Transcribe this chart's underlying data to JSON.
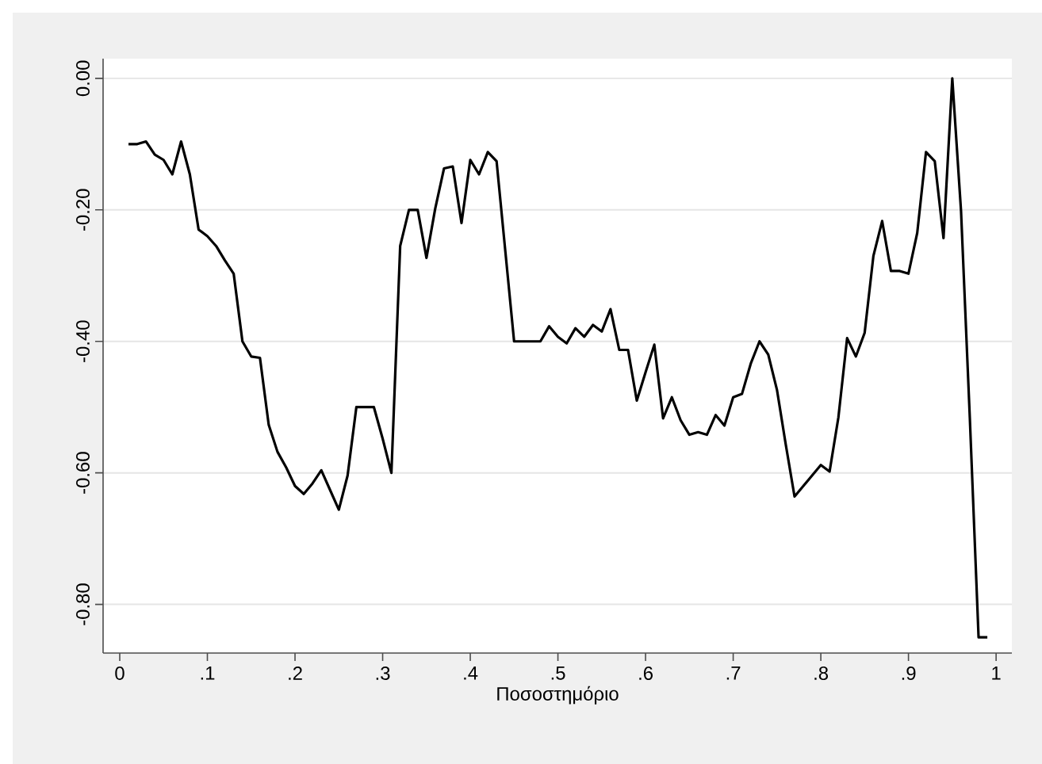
{
  "chart_data": {
    "type": "line",
    "xlabel": "Ποσοστημόριο",
    "x": [
      0.01,
      0.02,
      0.03,
      0.04,
      0.05,
      0.06,
      0.07,
      0.08,
      0.09,
      0.1,
      0.11,
      0.12,
      0.13,
      0.14,
      0.15,
      0.16,
      0.17,
      0.18,
      0.19,
      0.2,
      0.21,
      0.22,
      0.23,
      0.24,
      0.25,
      0.26,
      0.27,
      0.28,
      0.29,
      0.3,
      0.31,
      0.32,
      0.33,
      0.34,
      0.35,
      0.36,
      0.37,
      0.38,
      0.39,
      0.4,
      0.41,
      0.42,
      0.43,
      0.44,
      0.45,
      0.46,
      0.47,
      0.48,
      0.49,
      0.5,
      0.51,
      0.52,
      0.53,
      0.54,
      0.55,
      0.56,
      0.57,
      0.58,
      0.59,
      0.6,
      0.61,
      0.62,
      0.63,
      0.64,
      0.65,
      0.66,
      0.67,
      0.68,
      0.69,
      0.7,
      0.71,
      0.72,
      0.73,
      0.74,
      0.75,
      0.76,
      0.77,
      0.78,
      0.79,
      0.8,
      0.81,
      0.82,
      0.83,
      0.84,
      0.85,
      0.86,
      0.87,
      0.88,
      0.89,
      0.9,
      0.91,
      0.92,
      0.93,
      0.94,
      0.95,
      0.96,
      0.97,
      0.98,
      0.99
    ],
    "series": [
      {
        "color": "#000000",
        "values": [
          -0.1,
          -0.1,
          -0.096,
          -0.116,
          -0.124,
          -0.146,
          -0.096,
          -0.146,
          -0.23,
          -0.24,
          -0.255,
          -0.277,
          -0.297,
          -0.4,
          -0.423,
          -0.425,
          -0.527,
          -0.568,
          -0.592,
          -0.62,
          -0.632,
          -0.616,
          -0.596,
          -0.626,
          -0.656,
          -0.604,
          -0.5,
          -0.5,
          -0.5,
          -0.548,
          -0.6,
          -0.255,
          -0.2,
          -0.2,
          -0.273,
          -0.198,
          -0.137,
          -0.134,
          -0.22,
          -0.124,
          -0.146,
          -0.112,
          -0.126,
          -0.263,
          -0.4,
          -0.4,
          -0.4,
          -0.4,
          -0.377,
          -0.393,
          -0.403,
          -0.38,
          -0.393,
          -0.375,
          -0.385,
          -0.351,
          -0.413,
          -0.413,
          -0.49,
          -0.447,
          -0.405,
          -0.517,
          -0.485,
          -0.52,
          -0.542,
          -0.538,
          -0.542,
          -0.512,
          -0.528,
          -0.485,
          -0.48,
          -0.434,
          -0.4,
          -0.42,
          -0.474,
          -0.557,
          -0.636,
          -0.62,
          -0.604,
          -0.588,
          -0.598,
          -0.516,
          -0.395,
          -0.423,
          -0.387,
          -0.27,
          -0.217,
          -0.293,
          -0.293,
          -0.297,
          -0.235,
          -0.112,
          -0.126,
          -0.243,
          0.0,
          -0.202,
          -0.516,
          -0.85,
          -0.85
        ]
      }
    ],
    "xlim": [
      -0.019,
      1.018
    ],
    "ylim": [
      -0.874,
      0.03
    ],
    "xticks": [
      0,
      {
        "value": 0.1,
        "label": ".1"
      },
      {
        "value": 0.2,
        "label": ".2"
      },
      {
        "value": 0.3,
        "label": ".3"
      },
      {
        "value": 0.4,
        "label": ".4"
      },
      {
        "value": 0.5,
        "label": ".5"
      },
      {
        "value": 0.6,
        "label": ".6"
      },
      {
        "value": 0.7,
        "label": ".7"
      },
      {
        "value": 0.8,
        "label": ".8"
      },
      {
        "value": 0.9,
        "label": ".9"
      },
      1
    ],
    "yticks": [
      {
        "value": 0,
        "label": "0.00"
      },
      {
        "value": -0.2,
        "label": "-0.20"
      },
      {
        "value": -0.4,
        "label": "-0.40"
      },
      {
        "value": -0.6,
        "label": "-0.60"
      },
      {
        "value": -0.8,
        "label": "-0.80"
      }
    ],
    "grid": "y",
    "marker": "none",
    "line_style": "solid"
  }
}
